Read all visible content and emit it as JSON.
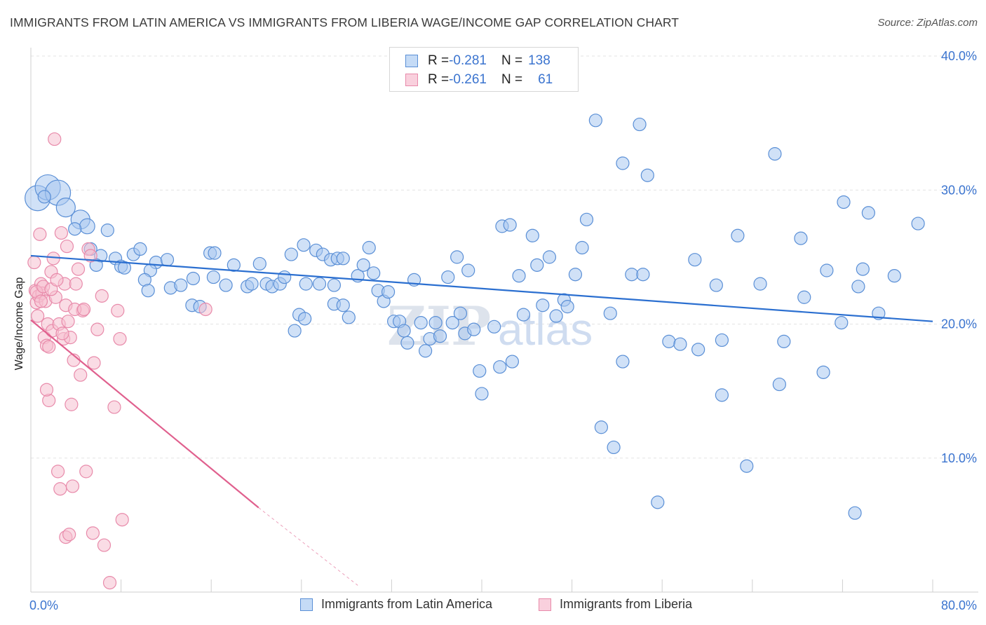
{
  "header": {
    "title": "IMMIGRANTS FROM LATIN AMERICA VS IMMIGRANTS FROM LIBERIA WAGE/INCOME GAP CORRELATION CHART",
    "source": "Source: ZipAtlas.com"
  },
  "legend_top": {
    "rows": [
      {
        "r_label": "R = ",
        "r_value": "-0.281",
        "n_label": "N = ",
        "n_value": "138"
      },
      {
        "r_label": "R = ",
        "r_value": "-0.261",
        "n_label": "N = ",
        "n_value": "61"
      }
    ]
  },
  "legend_bottom": {
    "items": [
      "Immigrants from Latin America",
      "Immigrants from Liberia"
    ]
  },
  "watermark": {
    "zip": "ZIP",
    "atlas": "atlas"
  },
  "colors": {
    "blue_fill": "#a9c8f0",
    "blue_stroke": "#5a8fd6",
    "blue_line": "#2b6fd0",
    "pink_fill": "#f6bfd0",
    "pink_stroke": "#e88aaa",
    "pink_line": "#e0608e",
    "axis_text": "#3b74cf",
    "grid": "#e3e3e3"
  },
  "chart_data": {
    "type": "scatter",
    "title": "IMMIGRANTS FROM LATIN AMERICA VS IMMIGRANTS FROM LIBERIA WAGE/INCOME GAP CORRELATION CHART",
    "xlabel": "",
    "ylabel": "Wage/Income Gap",
    "xlim": [
      0,
      80
    ],
    "ylim": [
      0,
      40
    ],
    "y_ticks": [
      {
        "v": 10,
        "label": "10.0%"
      },
      {
        "v": 20,
        "label": "20.0%"
      },
      {
        "v": 30,
        "label": "30.0%"
      },
      {
        "v": 40,
        "label": "40.0%"
      }
    ],
    "x_tick_labels": [
      {
        "v": 0,
        "label": "0.0%"
      },
      {
        "v": 80,
        "label": "80.0%"
      }
    ],
    "grid": true,
    "legend_position": "top-center",
    "series": [
      {
        "name": "Immigrants from Latin America",
        "R": -0.281,
        "N": 138,
        "trend": {
          "x0": 0,
          "y0": 25.1,
          "x1": 80,
          "y1": 20.2
        },
        "points": [
          [
            0.6,
            29.4,
            2
          ],
          [
            1.5,
            30.2,
            2
          ],
          [
            2.4,
            29.8,
            2
          ],
          [
            1.2,
            29.5,
            1
          ],
          [
            3.1,
            28.7,
            1.5
          ],
          [
            4.4,
            27.8,
            1.5
          ],
          [
            5.0,
            27.3,
            1.2
          ],
          [
            3.9,
            27.1,
            1
          ],
          [
            6.8,
            27.0,
            1
          ],
          [
            5.3,
            25.6,
            1
          ],
          [
            6.2,
            25.1,
            1
          ],
          [
            7.5,
            24.9,
            1
          ],
          [
            8.0,
            24.3,
            1
          ],
          [
            9.1,
            25.2,
            1
          ],
          [
            9.7,
            25.6,
            1
          ],
          [
            11.1,
            24.6,
            1
          ],
          [
            12.1,
            24.8,
            1
          ],
          [
            10.6,
            24.0,
            1
          ],
          [
            10.1,
            23.3,
            1
          ],
          [
            8.3,
            24.2,
            1
          ],
          [
            5.8,
            24.4,
            1
          ],
          [
            10.4,
            22.5,
            1
          ],
          [
            12.4,
            22.7,
            1
          ],
          [
            13.3,
            22.9,
            1
          ],
          [
            14.3,
            21.4,
            1
          ],
          [
            15.0,
            21.3,
            1
          ],
          [
            14.4,
            23.4,
            1
          ],
          [
            15.9,
            25.3,
            1
          ],
          [
            16.3,
            25.3,
            1
          ],
          [
            16.2,
            23.5,
            1
          ],
          [
            17.3,
            22.9,
            1
          ],
          [
            18.0,
            24.4,
            1
          ],
          [
            19.2,
            22.8,
            1
          ],
          [
            19.6,
            23.0,
            1
          ],
          [
            20.3,
            24.5,
            1
          ],
          [
            20.9,
            23.0,
            1
          ],
          [
            21.4,
            22.8,
            1
          ],
          [
            22.1,
            23.0,
            1
          ],
          [
            22.5,
            23.5,
            1
          ],
          [
            23.8,
            20.7,
            1
          ],
          [
            23.4,
            19.5,
            1
          ],
          [
            24.3,
            20.4,
            1
          ],
          [
            23.1,
            25.2,
            1
          ],
          [
            24.2,
            25.9,
            1
          ],
          [
            25.3,
            25.5,
            1
          ],
          [
            25.9,
            25.2,
            1
          ],
          [
            26.6,
            24.8,
            1
          ],
          [
            27.2,
            24.9,
            1
          ],
          [
            27.7,
            24.9,
            1
          ],
          [
            24.4,
            23.0,
            1
          ],
          [
            25.6,
            23.0,
            1
          ],
          [
            26.9,
            22.9,
            1
          ],
          [
            26.9,
            21.5,
            1
          ],
          [
            27.7,
            21.4,
            1
          ],
          [
            28.2,
            20.5,
            1
          ],
          [
            29.0,
            23.6,
            1
          ],
          [
            29.5,
            24.4,
            1
          ],
          [
            30.0,
            25.7,
            1
          ],
          [
            30.4,
            23.8,
            1
          ],
          [
            30.8,
            22.5,
            1
          ],
          [
            31.3,
            21.7,
            1
          ],
          [
            31.7,
            22.4,
            1
          ],
          [
            32.2,
            20.2,
            1
          ],
          [
            32.7,
            20.2,
            1
          ],
          [
            33.1,
            19.5,
            1
          ],
          [
            33.4,
            18.6,
            1
          ],
          [
            34.0,
            23.3,
            1
          ],
          [
            34.6,
            20.1,
            1
          ],
          [
            35.0,
            18.0,
            1
          ],
          [
            35.4,
            18.9,
            1
          ],
          [
            35.9,
            20.1,
            1
          ],
          [
            36.3,
            19.1,
            1
          ],
          [
            37.0,
            23.5,
            1
          ],
          [
            37.4,
            20.1,
            1
          ],
          [
            37.8,
            25.0,
            1
          ],
          [
            38.1,
            20.8,
            1
          ],
          [
            38.5,
            19.3,
            1
          ],
          [
            38.8,
            24.0,
            1
          ],
          [
            39.3,
            19.6,
            1
          ],
          [
            39.8,
            16.5,
            1
          ],
          [
            40.0,
            14.8,
            1
          ],
          [
            41.1,
            19.8,
            1
          ],
          [
            41.6,
            16.8,
            1
          ],
          [
            41.8,
            27.3,
            1
          ],
          [
            42.5,
            27.4,
            1
          ],
          [
            42.7,
            17.2,
            1
          ],
          [
            43.3,
            23.6,
            1
          ],
          [
            43.7,
            20.7,
            1
          ],
          [
            44.5,
            26.6,
            1
          ],
          [
            44.9,
            24.4,
            1
          ],
          [
            45.4,
            21.4,
            1
          ],
          [
            46.0,
            25.0,
            1
          ],
          [
            46.6,
            20.6,
            1
          ],
          [
            47.3,
            21.8,
            1
          ],
          [
            47.6,
            21.3,
            1
          ],
          [
            48.3,
            23.7,
            1
          ],
          [
            48.9,
            25.7,
            1
          ],
          [
            49.3,
            27.8,
            1
          ],
          [
            50.1,
            35.2,
            1
          ],
          [
            50.6,
            12.3,
            1
          ],
          [
            51.4,
            20.8,
            1
          ],
          [
            51.7,
            10.8,
            1
          ],
          [
            52.5,
            32.0,
            1
          ],
          [
            52.5,
            17.2,
            1
          ],
          [
            53.3,
            23.7,
            1
          ],
          [
            54.3,
            23.7,
            1
          ],
          [
            54.0,
            34.9,
            1
          ],
          [
            54.7,
            31.1,
            1
          ],
          [
            55.6,
            6.7,
            1
          ],
          [
            56.6,
            18.7,
            1
          ],
          [
            57.6,
            18.5,
            1
          ],
          [
            58.9,
            24.8,
            1
          ],
          [
            59.2,
            18.1,
            1
          ],
          [
            60.8,
            22.9,
            1
          ],
          [
            61.3,
            14.7,
            1
          ],
          [
            61.3,
            18.8,
            1
          ],
          [
            62.7,
            26.6,
            1
          ],
          [
            63.5,
            9.4,
            1
          ],
          [
            64.7,
            23.0,
            1
          ],
          [
            66.0,
            32.7,
            1
          ],
          [
            66.4,
            15.5,
            1
          ],
          [
            66.8,
            18.7,
            1
          ],
          [
            68.3,
            26.4,
            1
          ],
          [
            68.6,
            22.0,
            1
          ],
          [
            70.3,
            16.4,
            1
          ],
          [
            70.6,
            24.0,
            1
          ],
          [
            71.9,
            20.1,
            1
          ],
          [
            72.1,
            29.1,
            1
          ],
          [
            73.1,
            5.9,
            1
          ],
          [
            73.4,
            22.8,
            1
          ],
          [
            73.8,
            24.1,
            1
          ],
          [
            74.3,
            28.3,
            1
          ],
          [
            75.2,
            20.8,
            1
          ],
          [
            76.6,
            23.6,
            1
          ],
          [
            78.7,
            27.5,
            1
          ]
        ]
      },
      {
        "name": "Immigrants from Liberia",
        "R": -0.261,
        "N": 61,
        "trend": {
          "x0": 0,
          "y0": 20.3,
          "x1": 20.2,
          "y1": 6.3
        },
        "trend_dashed_to": {
          "x": 29.0,
          "y": 0.5
        },
        "points": [
          [
            0.3,
            24.6,
            1
          ],
          [
            0.4,
            22.5,
            1
          ],
          [
            0.5,
            21.6,
            1
          ],
          [
            0.7,
            22.1,
            1
          ],
          [
            0.8,
            26.7,
            1
          ],
          [
            0.9,
            23.0,
            1
          ],
          [
            1.0,
            22.3,
            1
          ],
          [
            0.6,
            20.6,
            1
          ],
          [
            1.2,
            19.0,
            1
          ],
          [
            1.4,
            18.4,
            1
          ],
          [
            1.5,
            20.0,
            1
          ],
          [
            1.3,
            21.7,
            1
          ],
          [
            1.6,
            14.3,
            1
          ],
          [
            1.8,
            23.9,
            1
          ],
          [
            2.0,
            24.9,
            1
          ],
          [
            2.2,
            22.0,
            1
          ],
          [
            1.9,
            19.5,
            1
          ],
          [
            2.5,
            20.0,
            1
          ],
          [
            2.7,
            26.8,
            1
          ],
          [
            2.1,
            33.8,
            1
          ],
          [
            2.4,
            9.0,
            1
          ],
          [
            2.6,
            7.7,
            1
          ],
          [
            2.9,
            18.9,
            1
          ],
          [
            3.0,
            23.0,
            1
          ],
          [
            3.2,
            25.8,
            1
          ],
          [
            3.3,
            20.2,
            1
          ],
          [
            3.5,
            19.0,
            1
          ],
          [
            3.1,
            4.1,
            1
          ],
          [
            3.4,
            4.3,
            1
          ],
          [
            3.7,
            7.9,
            1
          ],
          [
            3.6,
            14.0,
            1
          ],
          [
            4.0,
            23.0,
            1
          ],
          [
            4.2,
            24.1,
            1
          ],
          [
            4.4,
            16.2,
            1
          ],
          [
            4.6,
            21.0,
            1
          ],
          [
            4.9,
            9.0,
            1
          ],
          [
            5.1,
            25.6,
            1
          ],
          [
            5.3,
            25.1,
            1
          ],
          [
            5.5,
            4.4,
            1
          ],
          [
            5.6,
            17.1,
            1
          ],
          [
            5.9,
            19.6,
            1
          ],
          [
            6.3,
            22.1,
            1
          ],
          [
            6.5,
            3.5,
            1
          ],
          [
            7.0,
            0.7,
            1
          ],
          [
            7.4,
            13.8,
            1
          ],
          [
            7.7,
            21.0,
            1
          ],
          [
            7.9,
            18.9,
            1
          ],
          [
            8.1,
            5.4,
            1
          ],
          [
            0.5,
            22.4,
            1
          ],
          [
            0.9,
            21.7,
            1
          ],
          [
            1.1,
            22.8,
            1
          ],
          [
            1.4,
            15.1,
            1
          ],
          [
            1.6,
            18.3,
            1
          ],
          [
            1.8,
            22.6,
            1
          ],
          [
            2.3,
            23.3,
            1
          ],
          [
            2.8,
            19.3,
            1
          ],
          [
            3.1,
            21.4,
            1
          ],
          [
            3.9,
            21.1,
            1
          ],
          [
            4.7,
            21.1,
            1
          ],
          [
            15.5,
            21.1,
            1
          ],
          [
            3.8,
            17.3,
            1
          ]
        ]
      }
    ]
  }
}
